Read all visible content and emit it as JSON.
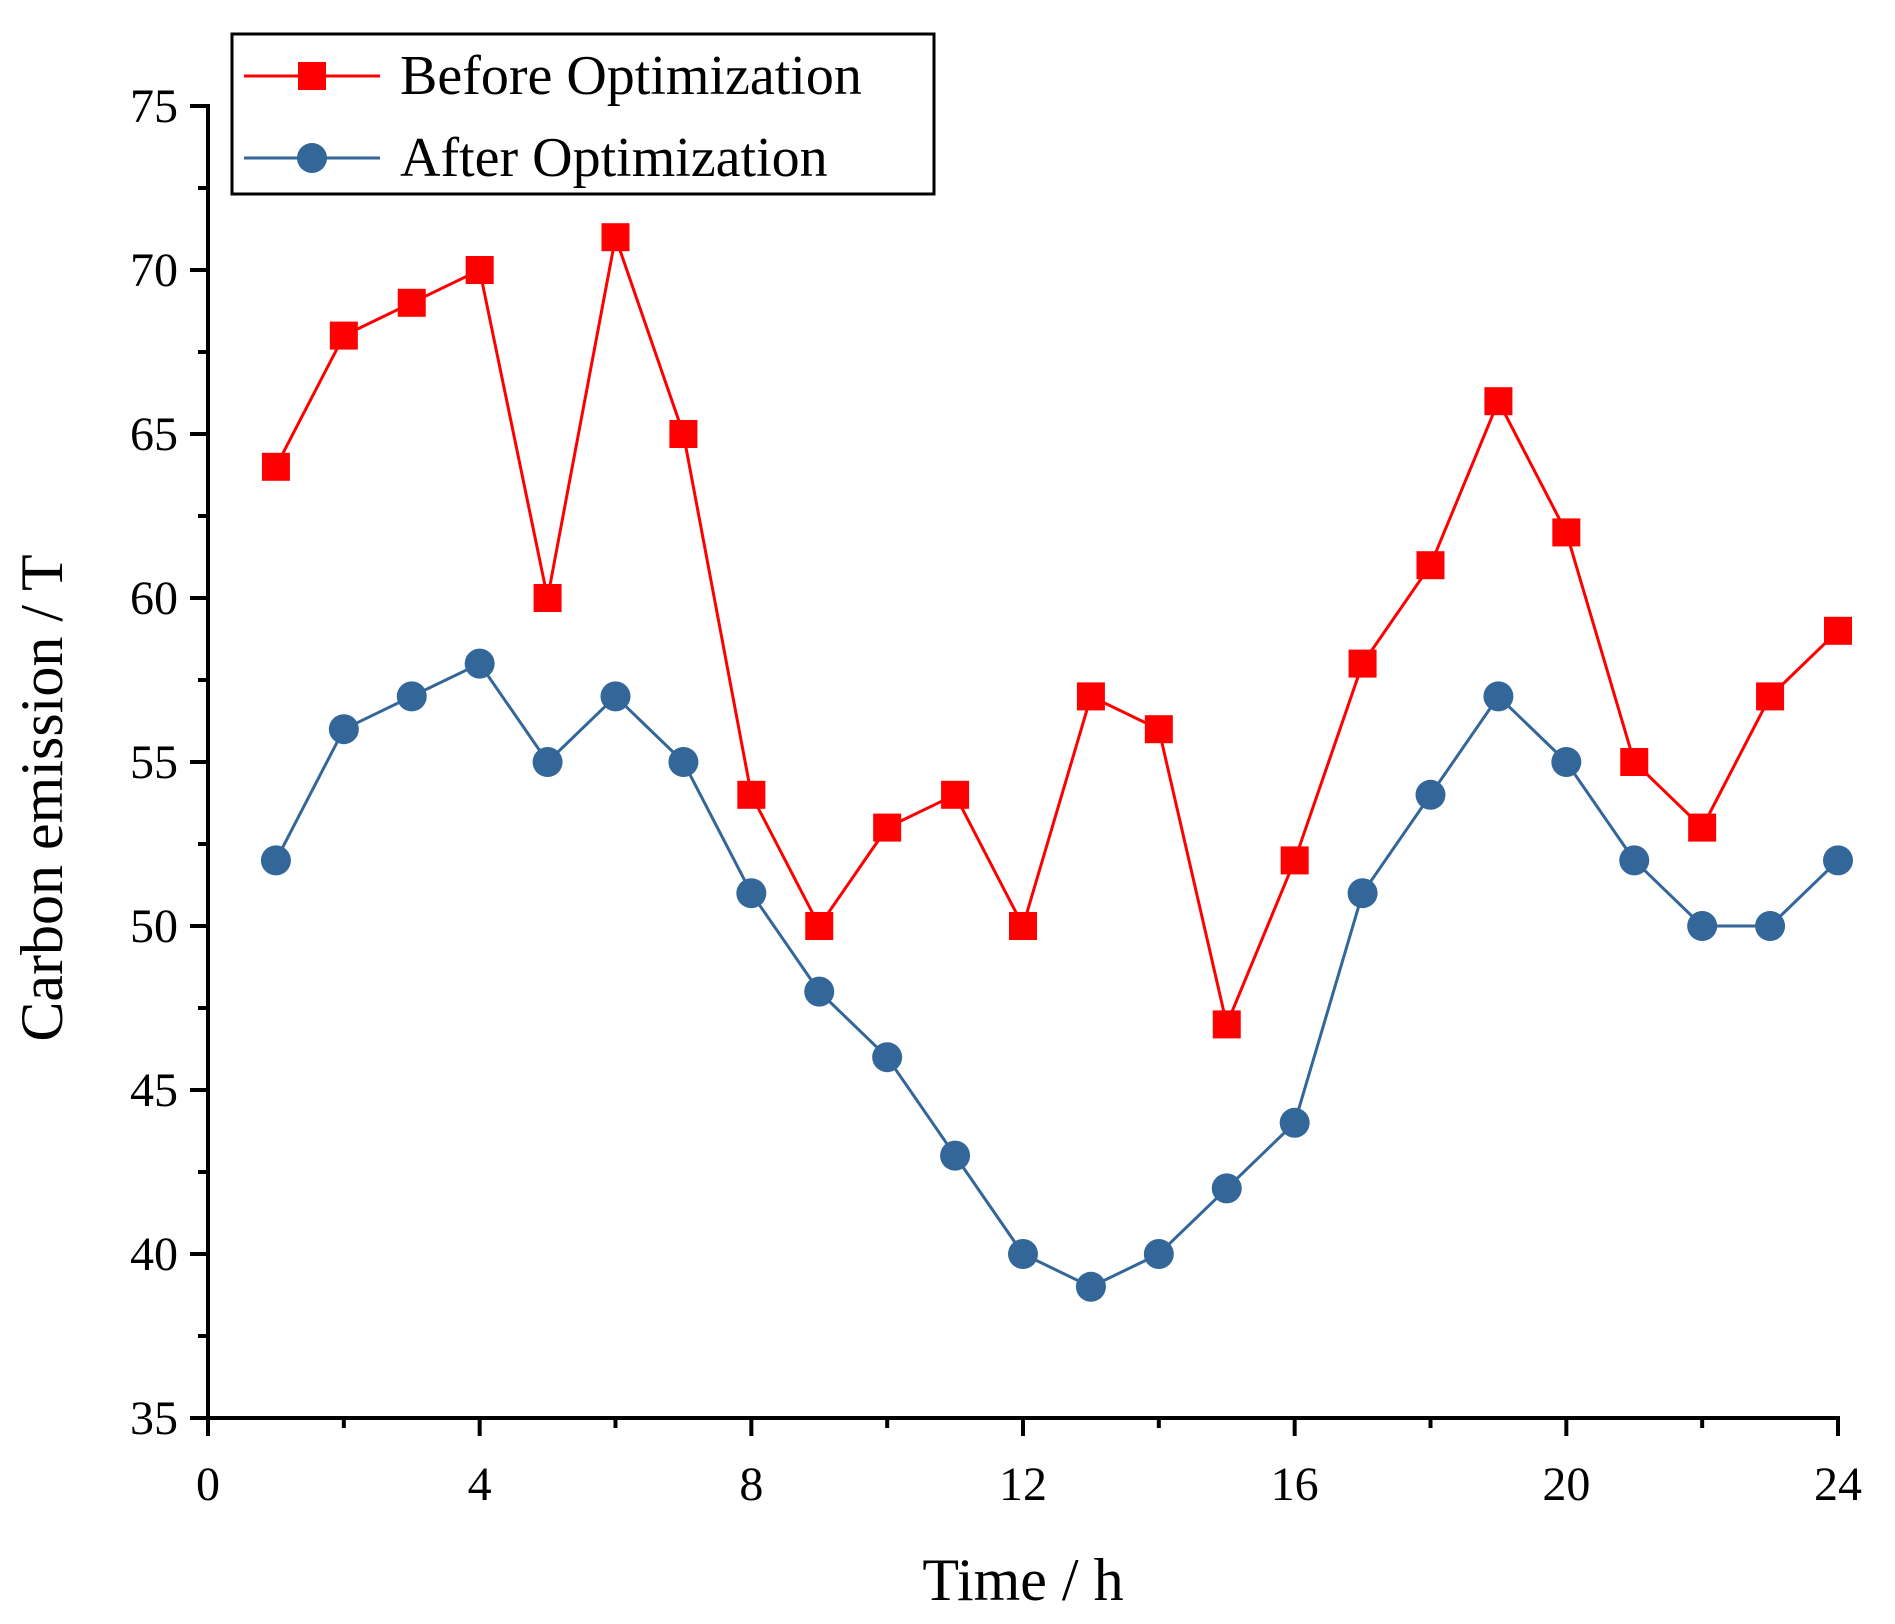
{
  "chart_data": {
    "type": "line",
    "title": "",
    "xlabel": "Time / h",
    "ylabel": "Carbon emission / T",
    "xlim": [
      0,
      24
    ],
    "ylim": [
      35,
      75
    ],
    "x_ticks": [
      0,
      4,
      8,
      12,
      16,
      20,
      24
    ],
    "y_ticks": [
      35,
      40,
      45,
      50,
      55,
      60,
      65,
      70,
      75
    ],
    "legend_position": "top-left",
    "x": [
      1,
      2,
      3,
      4,
      5,
      6,
      7,
      8,
      9,
      10,
      11,
      12,
      13,
      14,
      15,
      16,
      17,
      18,
      19,
      20,
      21,
      22,
      23,
      24
    ],
    "series": [
      {
        "name": "Before Optimization",
        "color": "#ff0000",
        "marker": "square",
        "values": [
          64,
          68,
          69,
          70,
          60,
          71,
          65,
          54,
          50,
          53,
          54,
          50,
          57,
          56,
          47,
          52,
          58,
          61,
          66,
          62,
          55,
          53,
          57,
          59
        ]
      },
      {
        "name": "After Optimization",
        "color": "#336699",
        "marker": "circle",
        "values": [
          52,
          56,
          57,
          58,
          55,
          57,
          55,
          51,
          48,
          46,
          43,
          40,
          39,
          40,
          42,
          44,
          51,
          54,
          57,
          55,
          52,
          50,
          50,
          52
        ]
      }
    ]
  }
}
